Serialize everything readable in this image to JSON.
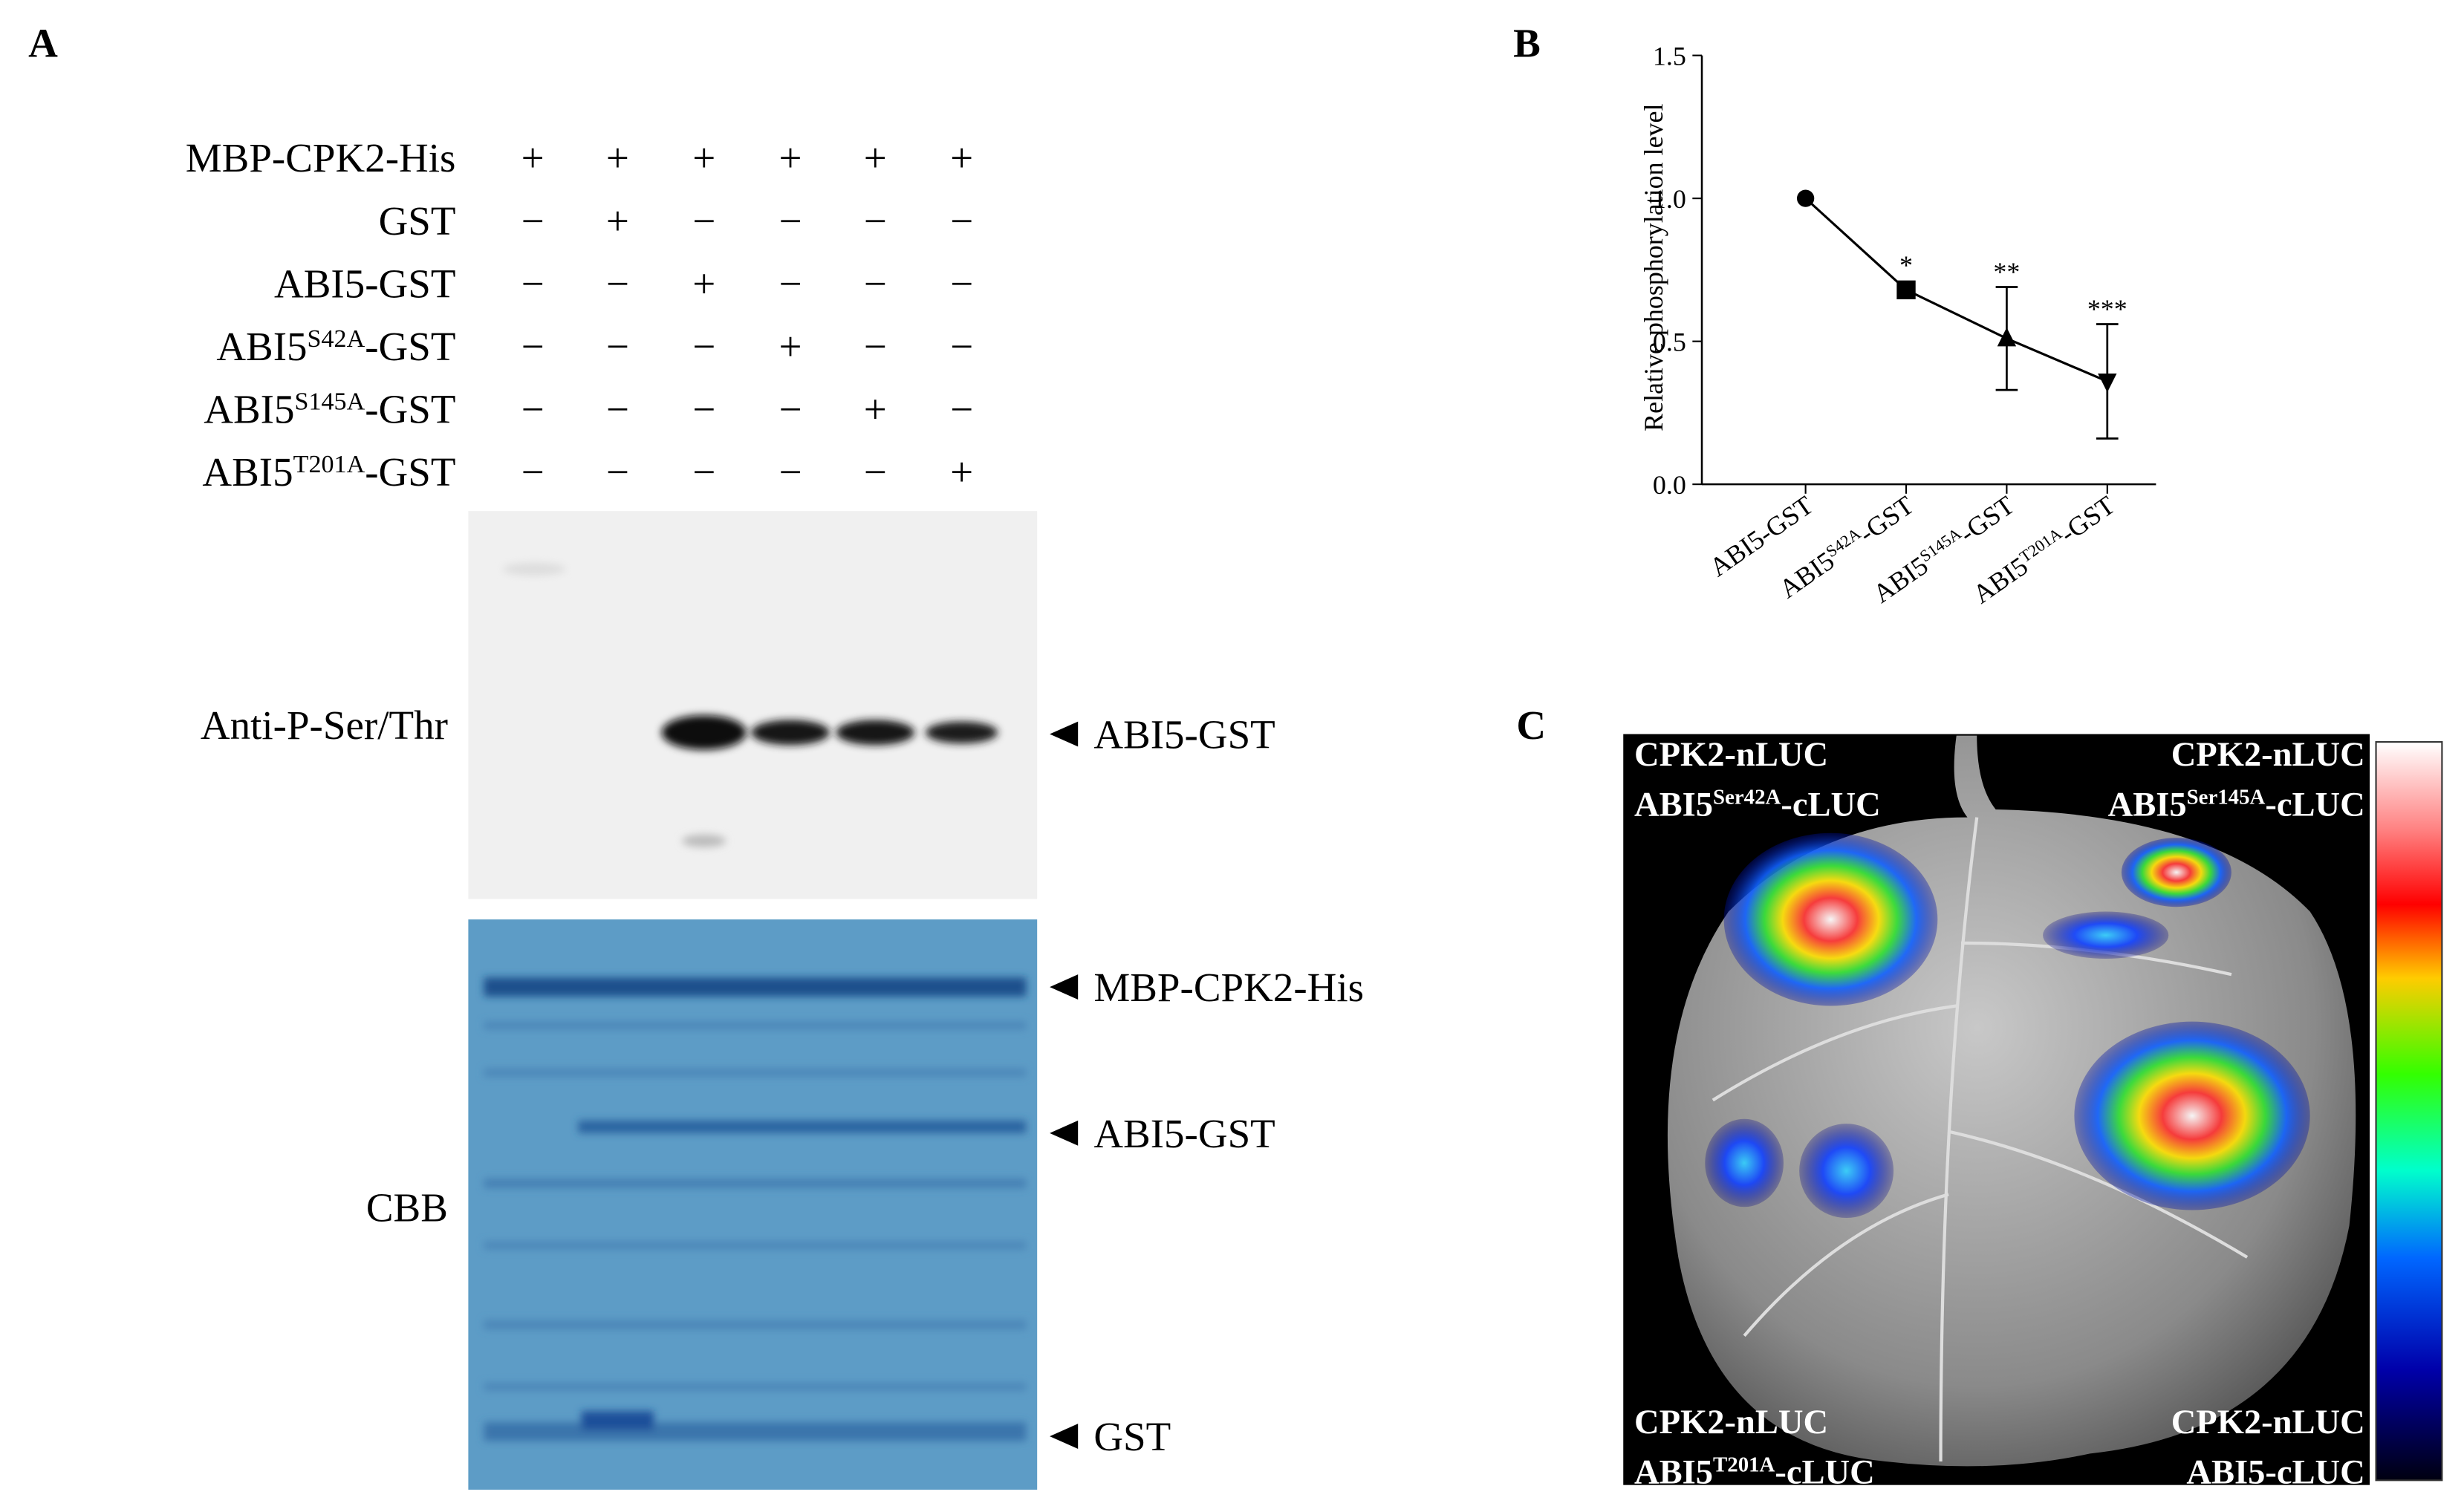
{
  "panel_a": {
    "letter": "A",
    "rows": [
      {
        "label": [
          "MBP-CPK2-His"
        ],
        "signs": [
          "+",
          "+",
          "+",
          "+",
          "+",
          "+"
        ]
      },
      {
        "label": [
          "GST"
        ],
        "signs": [
          "−",
          "+",
          "−",
          "−",
          "−",
          "−"
        ]
      },
      {
        "label": [
          "ABI5-GST"
        ],
        "signs": [
          "−",
          "−",
          "+",
          "−",
          "−",
          "−"
        ]
      },
      {
        "label": [
          "ABI5",
          "S42A",
          "-GST"
        ],
        "signs": [
          "−",
          "−",
          "−",
          "+",
          "−",
          "−"
        ]
      },
      {
        "label": [
          "ABI5",
          "S145A",
          "-GST"
        ],
        "signs": [
          "−",
          "−",
          "−",
          "−",
          "+",
          "−"
        ]
      },
      {
        "label": [
          "ABI5",
          "T201A",
          "-GST"
        ],
        "signs": [
          "−",
          "−",
          "−",
          "−",
          "−",
          "+"
        ]
      }
    ],
    "blot_labels": [
      "Anti-P-Ser/Thr",
      "CBB"
    ],
    "band_labels": [
      "ABI5-GST",
      "MBP-CPK2-His",
      "ABI5-GST",
      "GST"
    ]
  },
  "chart_data": {
    "type": "line",
    "panel_letter": "B",
    "ylabel": "Relative phosphorylation level",
    "categories": [
      [
        "ABI5-GST"
      ],
      [
        "ABI5",
        "S42A",
        "-GST"
      ],
      [
        "ABI5",
        "S145A",
        "-GST"
      ],
      [
        "ABI5",
        "T201A",
        "-GST"
      ]
    ],
    "series": [
      {
        "color": "#000000",
        "values": [
          1.0,
          0.68,
          0.51,
          0.36
        ],
        "errors": [
          null,
          null,
          0.18,
          0.2
        ],
        "markers": [
          "circle",
          "square",
          "triangle-up",
          "triangle-down"
        ]
      }
    ],
    "annotations": [
      null,
      "*",
      "**",
      "***"
    ],
    "ylim": [
      0,
      1.5
    ],
    "yticks": [
      {
        "value": 0,
        "label": "0.0"
      },
      {
        "value": 0.5,
        "label": "0.5"
      },
      {
        "value": 1,
        "label": "1.0"
      },
      {
        "value": 1.5,
        "label": "1.5"
      }
    ]
  },
  "panel_c": {
    "letter": "C",
    "corners": [
      {
        "lines": [
          [
            "CPK2-nLUC"
          ],
          [
            "ABI5",
            "Ser42A",
            "-cLUC"
          ]
        ]
      },
      {
        "lines": [
          [
            "CPK2-nLUC"
          ],
          [
            "ABI5",
            "Ser145A",
            "-cLUC"
          ]
        ]
      },
      {
        "lines": [
          [
            "CPK2-nLUC"
          ],
          [
            "ABI5",
            "T201A",
            "-cLUC"
          ]
        ]
      },
      {
        "lines": [
          [
            "CPK2-nLUC"
          ],
          [
            "ABI5-cLUC"
          ]
        ]
      }
    ]
  }
}
